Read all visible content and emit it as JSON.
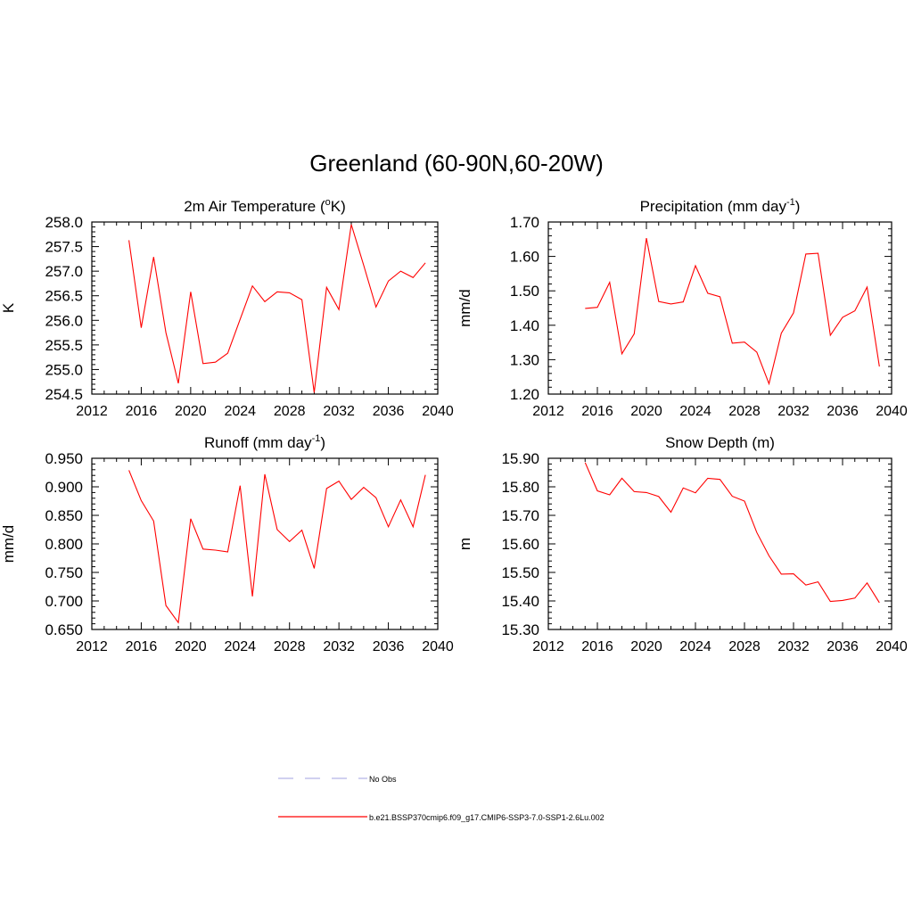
{
  "figure": {
    "title": "Greenland (60-90N,60-20W)"
  },
  "legend": {
    "entries": [
      {
        "label": "No Obs",
        "style": "dashed",
        "color": "#b3b3e6"
      },
      {
        "label": "b.e21.BSSP370cmip6.f09_g17.CMIP6-SSP3-7.0-SSP1-2.6Lu.002",
        "style": "solid",
        "color": "#ff0000"
      }
    ]
  },
  "chart_data": [
    {
      "type": "line",
      "title": "2m Air Temperature (",
      "title_sup": "o",
      "title_after": "K)",
      "ylabel": "K",
      "xlim": [
        2012,
        2040
      ],
      "xticks": [
        2012,
        2016,
        2020,
        2024,
        2028,
        2032,
        2036,
        2040
      ],
      "ylim": [
        254.5,
        258.0
      ],
      "yticks": [
        254.5,
        255.0,
        255.5,
        256.0,
        256.5,
        257.0,
        257.5,
        258.0
      ],
      "ytick_labels": [
        "254.5",
        "255.0",
        "255.5",
        "256.0",
        "256.5",
        "257.0",
        "257.5",
        "258.0"
      ],
      "grid": false,
      "series": [
        {
          "color": "#ff0000",
          "x": [
            2015,
            2016,
            2017,
            2018,
            2019,
            2020,
            2021,
            2022,
            2023,
            2024,
            2025,
            2026,
            2027,
            2028,
            2029,
            2030,
            2031,
            2032,
            2033,
            2034,
            2035,
            2036,
            2037,
            2038,
            2039
          ],
          "y": [
            257.63,
            255.85,
            257.29,
            255.75,
            254.72,
            256.58,
            255.12,
            255.15,
            255.33,
            256.02,
            256.7,
            256.38,
            256.58,
            256.56,
            256.42,
            254.53,
            256.67,
            256.22,
            257.95,
            257.12,
            256.27,
            256.8,
            257.0,
            256.87,
            257.17
          ]
        }
      ]
    },
    {
      "type": "line",
      "title": "Precipitation (mm day",
      "title_sup": "-1",
      "title_after": ")",
      "ylabel": "mm/d",
      "xlim": [
        2012,
        2040
      ],
      "xticks": [
        2012,
        2016,
        2020,
        2024,
        2028,
        2032,
        2036,
        2040
      ],
      "ylim": [
        1.2,
        1.7
      ],
      "yticks": [
        1.2,
        1.3,
        1.4,
        1.5,
        1.6,
        1.7
      ],
      "ytick_labels": [
        "1.20",
        "1.30",
        "1.40",
        "1.50",
        "1.60",
        "1.70"
      ],
      "grid": false,
      "series": [
        {
          "color": "#ff0000",
          "x": [
            2015,
            2016,
            2017,
            2018,
            2019,
            2020,
            2021,
            2022,
            2023,
            2024,
            2025,
            2026,
            2027,
            2028,
            2029,
            2030,
            2031,
            2032,
            2033,
            2034,
            2035,
            2036,
            2037,
            2038,
            2039
          ],
          "y": [
            1.449,
            1.452,
            1.525,
            1.317,
            1.375,
            1.653,
            1.469,
            1.462,
            1.468,
            1.573,
            1.493,
            1.483,
            1.348,
            1.351,
            1.322,
            1.23,
            1.377,
            1.436,
            1.607,
            1.609,
            1.371,
            1.423,
            1.442,
            1.511,
            1.28
          ]
        }
      ]
    },
    {
      "type": "line",
      "title": "Runoff (mm day",
      "title_sup": "-1",
      "title_after": ")",
      "ylabel": "mm/d",
      "xlim": [
        2012,
        2040
      ],
      "xticks": [
        2012,
        2016,
        2020,
        2024,
        2028,
        2032,
        2036,
        2040
      ],
      "ylim": [
        0.65,
        0.95
      ],
      "yticks": [
        0.65,
        0.7,
        0.75,
        0.8,
        0.85,
        0.9,
        0.95
      ],
      "ytick_labels": [
        "0.650",
        "0.700",
        "0.750",
        "0.800",
        "0.850",
        "0.900",
        "0.950"
      ],
      "grid": false,
      "series": [
        {
          "color": "#ff0000",
          "x": [
            2015,
            2016,
            2017,
            2018,
            2019,
            2020,
            2021,
            2022,
            2023,
            2024,
            2025,
            2026,
            2027,
            2028,
            2029,
            2030,
            2031,
            2032,
            2033,
            2034,
            2035,
            2036,
            2037,
            2038,
            2039
          ],
          "y": [
            0.929,
            0.876,
            0.84,
            0.692,
            0.662,
            0.844,
            0.791,
            0.789,
            0.786,
            0.902,
            0.708,
            0.922,
            0.825,
            0.804,
            0.824,
            0.757,
            0.897,
            0.91,
            0.878,
            0.899,
            0.881,
            0.83,
            0.877,
            0.83,
            0.921
          ]
        }
      ]
    },
    {
      "type": "line",
      "title": "Snow Depth (m)",
      "title_sup": "",
      "title_after": "",
      "ylabel": "m",
      "xlim": [
        2012,
        2040
      ],
      "xticks": [
        2012,
        2016,
        2020,
        2024,
        2028,
        2032,
        2036,
        2040
      ],
      "ylim": [
        15.3,
        15.9
      ],
      "yticks": [
        15.3,
        15.4,
        15.5,
        15.6,
        15.7,
        15.8,
        15.9
      ],
      "ytick_labels": [
        "15.30",
        "15.40",
        "15.50",
        "15.60",
        "15.70",
        "15.80",
        "15.90"
      ],
      "grid": false,
      "series": [
        {
          "color": "#ff0000",
          "x": [
            2015,
            2016,
            2017,
            2018,
            2019,
            2020,
            2021,
            2022,
            2023,
            2024,
            2025,
            2026,
            2027,
            2028,
            2029,
            2030,
            2031,
            2032,
            2033,
            2034,
            2035,
            2036,
            2037,
            2038,
            2039
          ],
          "y": [
            15.885,
            15.786,
            15.772,
            15.83,
            15.783,
            15.78,
            15.766,
            15.711,
            15.796,
            15.779,
            15.83,
            15.826,
            15.767,
            15.75,
            15.64,
            15.558,
            15.494,
            15.495,
            15.456,
            15.467,
            15.398,
            15.402,
            15.41,
            15.463,
            15.394
          ]
        }
      ]
    }
  ]
}
